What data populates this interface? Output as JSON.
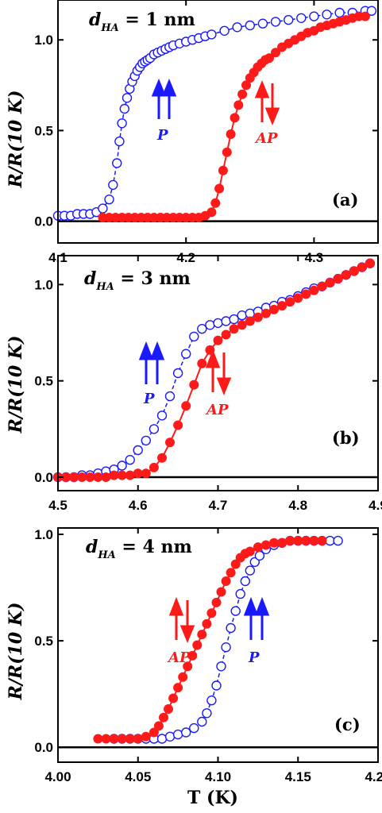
{
  "colors": {
    "p_series": "#1a1aff",
    "ap_series": "#ff1a1a",
    "axis": "#000000"
  },
  "shared": {
    "ylabel": "R/R(10 K)",
    "xlabel": "T (K)"
  },
  "chart_data": [
    {
      "type": "scatter",
      "panel_label": "(a)",
      "annotation": {
        "prefix": "d",
        "subscript": "HA",
        "text": " = 1 nm"
      },
      "p_label": "P",
      "ap_label": "AP",
      "xlim": [
        4.1,
        4.35
      ],
      "ylim": [
        -0.12,
        1.22
      ],
      "xticks": [
        "4.1",
        "4.2",
        "4.3"
      ],
      "xtick_values": [
        4.1,
        4.2,
        4.3
      ],
      "yticks": [
        "0.0",
        "0.5",
        "1.0"
      ],
      "ytick_values": [
        0.0,
        0.5,
        1.0
      ],
      "baseline": 0.0,
      "series": [
        {
          "name": "P",
          "marker": "open-circle",
          "x": [
            4.1,
            4.105,
            4.11,
            4.115,
            4.12,
            4.125,
            4.13,
            4.135,
            4.14,
            4.143,
            4.146,
            4.148,
            4.15,
            4.152,
            4.154,
            4.156,
            4.158,
            4.16,
            4.162,
            4.164,
            4.166,
            4.168,
            4.17,
            4.172,
            4.175,
            4.178,
            4.181,
            4.184,
            4.187,
            4.19,
            4.195,
            4.2,
            4.205,
            4.21,
            4.215,
            4.22,
            4.23,
            4.24,
            4.25,
            4.26,
            4.27,
            4.28,
            4.29,
            4.3,
            4.31,
            4.32,
            4.33,
            4.34,
            4.345
          ],
          "y": [
            0.03,
            0.03,
            0.03,
            0.04,
            0.04,
            0.04,
            0.05,
            0.07,
            0.12,
            0.2,
            0.32,
            0.44,
            0.54,
            0.62,
            0.68,
            0.73,
            0.77,
            0.8,
            0.83,
            0.85,
            0.87,
            0.88,
            0.89,
            0.9,
            0.92,
            0.93,
            0.94,
            0.95,
            0.96,
            0.97,
            0.98,
            0.99,
            1.0,
            1.01,
            1.02,
            1.03,
            1.05,
            1.07,
            1.08,
            1.09,
            1.1,
            1.11,
            1.12,
            1.13,
            1.14,
            1.15,
            1.15,
            1.16,
            1.16
          ]
        },
        {
          "name": "AP",
          "marker": "filled-circle",
          "x": [
            4.135,
            4.14,
            4.145,
            4.15,
            4.155,
            4.16,
            4.165,
            4.17,
            4.175,
            4.18,
            4.185,
            4.19,
            4.195,
            4.2,
            4.205,
            4.21,
            4.215,
            4.22,
            4.223,
            4.226,
            4.229,
            4.232,
            4.235,
            4.238,
            4.241,
            4.244,
            4.247,
            4.25,
            4.253,
            4.256,
            4.259,
            4.262,
            4.265,
            4.27,
            4.275,
            4.28,
            4.285,
            4.29,
            4.295,
            4.3,
            4.305,
            4.31,
            4.315,
            4.32,
            4.325,
            4.33,
            4.335,
            4.34
          ],
          "y": [
            0.02,
            0.02,
            0.02,
            0.02,
            0.02,
            0.02,
            0.02,
            0.02,
            0.02,
            0.02,
            0.02,
            0.02,
            0.02,
            0.02,
            0.02,
            0.02,
            0.03,
            0.05,
            0.1,
            0.18,
            0.28,
            0.38,
            0.48,
            0.57,
            0.64,
            0.7,
            0.75,
            0.79,
            0.82,
            0.85,
            0.87,
            0.89,
            0.9,
            0.93,
            0.96,
            0.98,
            1.0,
            1.02,
            1.04,
            1.05,
            1.07,
            1.08,
            1.09,
            1.1,
            1.11,
            1.12,
            1.13,
            1.13
          ]
        }
      ]
    },
    {
      "type": "scatter",
      "panel_label": "(b)",
      "annotation": {
        "prefix": "d",
        "subscript": "HA",
        "text": " = 3 nm"
      },
      "p_label": "P",
      "ap_label": "AP",
      "xlim": [
        4.5,
        4.9
      ],
      "ylim": [
        -0.07,
        1.15
      ],
      "xticks": [
        "4.5",
        "4.6",
        "4.7",
        "4.8",
        "4.9"
      ],
      "xtick_values": [
        4.5,
        4.6,
        4.7,
        4.8,
        4.9
      ],
      "yticks": [
        "0.0",
        "0.5",
        "1.0"
      ],
      "ytick_values": [
        0.0,
        0.5,
        1.0
      ],
      "baseline": 0.0,
      "series": [
        {
          "name": "P",
          "marker": "open-circle",
          "x": [
            4.5,
            4.51,
            4.52,
            4.53,
            4.54,
            4.55,
            4.56,
            4.57,
            4.58,
            4.59,
            4.6,
            4.61,
            4.62,
            4.63,
            4.64,
            4.65,
            4.66,
            4.67,
            4.68,
            4.69,
            4.7,
            4.71,
            4.72,
            4.73,
            4.74,
            4.75,
            4.76,
            4.77,
            4.78,
            4.79,
            4.8,
            4.81,
            4.82,
            4.83,
            4.84,
            4.85,
            4.86,
            4.87,
            4.88,
            4.89
          ],
          "y": [
            0.0,
            0.0,
            0.0,
            0.01,
            0.01,
            0.02,
            0.03,
            0.04,
            0.06,
            0.09,
            0.14,
            0.19,
            0.25,
            0.32,
            0.42,
            0.54,
            0.64,
            0.73,
            0.77,
            0.79,
            0.8,
            0.81,
            0.82,
            0.84,
            0.85,
            0.86,
            0.88,
            0.89,
            0.91,
            0.92,
            0.94,
            0.96,
            0.98,
            0.99,
            1.01,
            1.03,
            1.05,
            1.07,
            1.09,
            1.11
          ]
        },
        {
          "name": "AP",
          "marker": "filled-circle",
          "x": [
            4.5,
            4.51,
            4.52,
            4.53,
            4.54,
            4.55,
            4.56,
            4.57,
            4.58,
            4.59,
            4.6,
            4.61,
            4.62,
            4.63,
            4.64,
            4.65,
            4.66,
            4.67,
            4.68,
            4.69,
            4.7,
            4.71,
            4.72,
            4.73,
            4.74,
            4.75,
            4.76,
            4.77,
            4.78,
            4.79,
            4.8,
            4.81,
            4.82,
            4.83,
            4.84,
            4.85,
            4.86,
            4.87,
            4.88,
            4.89
          ],
          "y": [
            0.0,
            0.0,
            0.0,
            0.0,
            0.0,
            0.0,
            0.0,
            0.01,
            0.01,
            0.01,
            0.02,
            0.02,
            0.05,
            0.1,
            0.18,
            0.27,
            0.37,
            0.48,
            0.59,
            0.66,
            0.71,
            0.74,
            0.77,
            0.79,
            0.81,
            0.83,
            0.85,
            0.87,
            0.89,
            0.91,
            0.93,
            0.95,
            0.97,
            0.99,
            1.01,
            1.03,
            1.05,
            1.07,
            1.09,
            1.11
          ]
        }
      ]
    },
    {
      "type": "scatter",
      "panel_label": "(c)",
      "annotation": {
        "prefix": "d",
        "subscript": "HA",
        "text": " = 4 nm"
      },
      "p_label": "P",
      "ap_label": "AP",
      "xlim": [
        4.0,
        4.2
      ],
      "ylim": [
        -0.07,
        1.03
      ],
      "xticks": [
        "4.00",
        "4.05",
        "4.10",
        "4.15",
        "4.20"
      ],
      "xtick_values": [
        4.0,
        4.05,
        4.1,
        4.15,
        4.2
      ],
      "yticks": [
        "0.0",
        "0.5",
        "1.0"
      ],
      "ytick_values": [
        0.0,
        0.5,
        1.0
      ],
      "baseline": 0.0,
      "series": [
        {
          "name": "P",
          "marker": "open-circle",
          "x": [
            4.035,
            4.04,
            4.045,
            4.05,
            4.055,
            4.06,
            4.065,
            4.07,
            4.075,
            4.08,
            4.085,
            4.09,
            4.093,
            4.096,
            4.099,
            4.102,
            4.105,
            4.108,
            4.111,
            4.114,
            4.117,
            4.12,
            4.123,
            4.126,
            4.13,
            4.135,
            4.14,
            4.145,
            4.15,
            4.155,
            4.16,
            4.165,
            4.17,
            4.175
          ],
          "y": [
            0.04,
            0.04,
            0.04,
            0.04,
            0.04,
            0.04,
            0.04,
            0.05,
            0.06,
            0.07,
            0.09,
            0.12,
            0.16,
            0.22,
            0.29,
            0.38,
            0.47,
            0.56,
            0.64,
            0.72,
            0.78,
            0.83,
            0.87,
            0.9,
            0.93,
            0.95,
            0.96,
            0.97,
            0.97,
            0.97,
            0.97,
            0.97,
            0.97,
            0.97
          ]
        },
        {
          "name": "AP",
          "marker": "filled-circle",
          "x": [
            4.025,
            4.03,
            4.035,
            4.04,
            4.045,
            4.05,
            4.055,
            4.06,
            4.063,
            4.066,
            4.069,
            4.072,
            4.075,
            4.078,
            4.081,
            4.084,
            4.087,
            4.09,
            4.093,
            4.096,
            4.099,
            4.102,
            4.105,
            4.108,
            4.111,
            4.114,
            4.117,
            4.12,
            4.125,
            4.13,
            4.135,
            4.14,
            4.145,
            4.15,
            4.155,
            4.16,
            4.165
          ],
          "y": [
            0.04,
            0.04,
            0.04,
            0.04,
            0.04,
            0.04,
            0.05,
            0.07,
            0.1,
            0.14,
            0.18,
            0.23,
            0.28,
            0.33,
            0.38,
            0.43,
            0.48,
            0.53,
            0.58,
            0.63,
            0.68,
            0.73,
            0.78,
            0.82,
            0.86,
            0.89,
            0.91,
            0.92,
            0.94,
            0.95,
            0.96,
            0.96,
            0.97,
            0.97,
            0.97,
            0.97,
            0.97
          ]
        }
      ]
    }
  ]
}
